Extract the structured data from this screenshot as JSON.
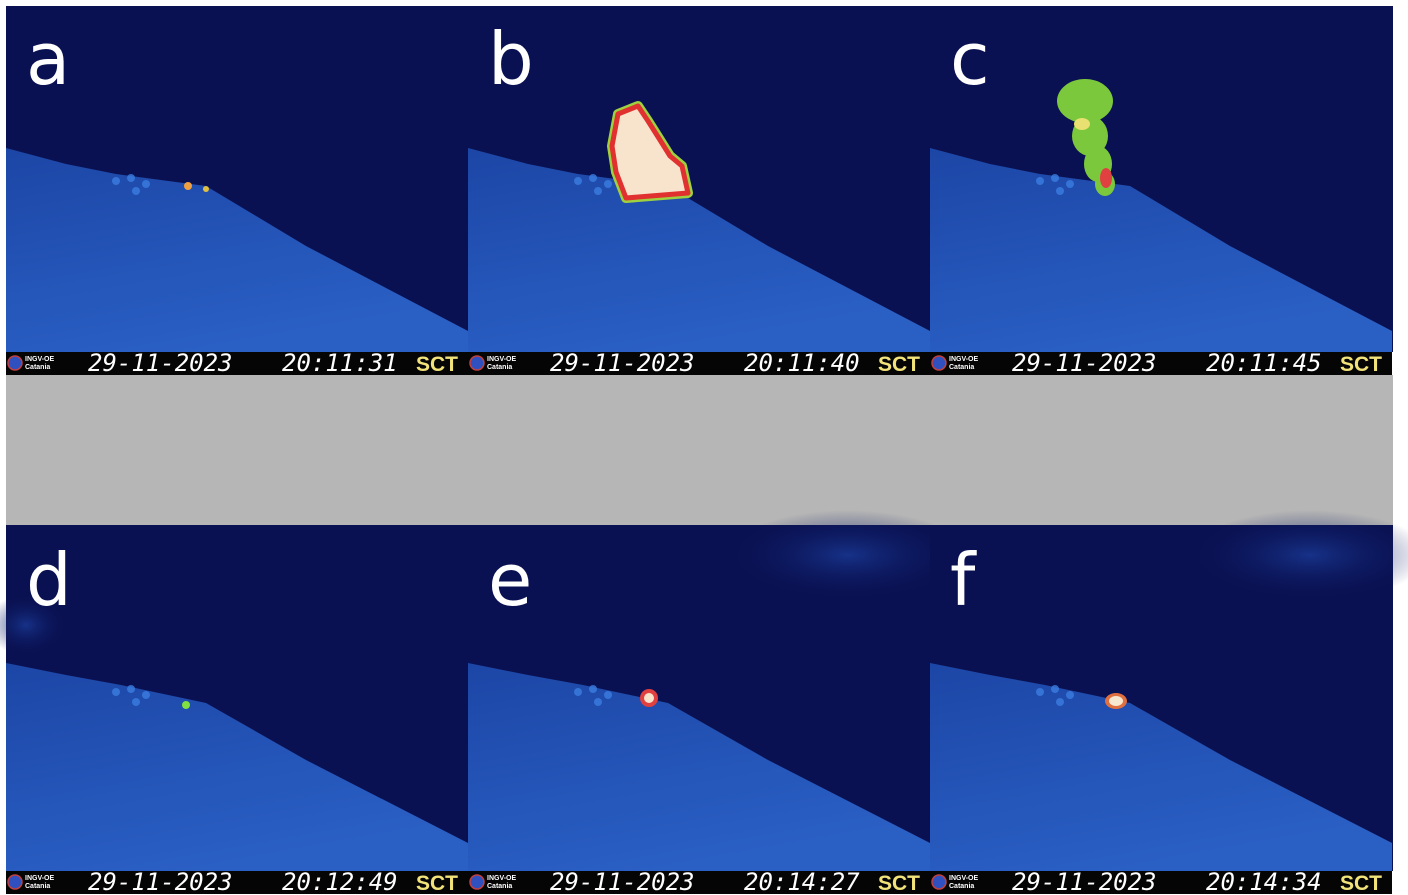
{
  "panels": [
    {
      "letter": "a",
      "logo": [
        "INGV-OE",
        "Catania"
      ],
      "date": "29-11-2023",
      "time": "20:11:31",
      "station": "SCT"
    },
    {
      "letter": "b",
      "logo": [
        "INGV-OE",
        "Catania"
      ],
      "date": "29-11-2023",
      "time": "20:11:40",
      "station": "SCT"
    },
    {
      "letter": "c",
      "logo": [
        "INGV-OE",
        "Catania"
      ],
      "date": "29-11-2023",
      "time": "20:11:45",
      "station": "SCT"
    },
    {
      "letter": "d",
      "logo": [
        "INGV-OE",
        "Catania"
      ],
      "date": "29-11-2023",
      "time": "20:12:49",
      "station": "SCT"
    },
    {
      "letter": "e",
      "logo": [
        "INGV-OE",
        "Catania"
      ],
      "date": "29-11-2023",
      "time": "20:14:27",
      "station": "SCT"
    },
    {
      "letter": "f",
      "logo": [
        "INGV-OE",
        "Catania"
      ],
      "date": "29-11-2023",
      "time": "20:14:34",
      "station": "SCT"
    }
  ]
}
